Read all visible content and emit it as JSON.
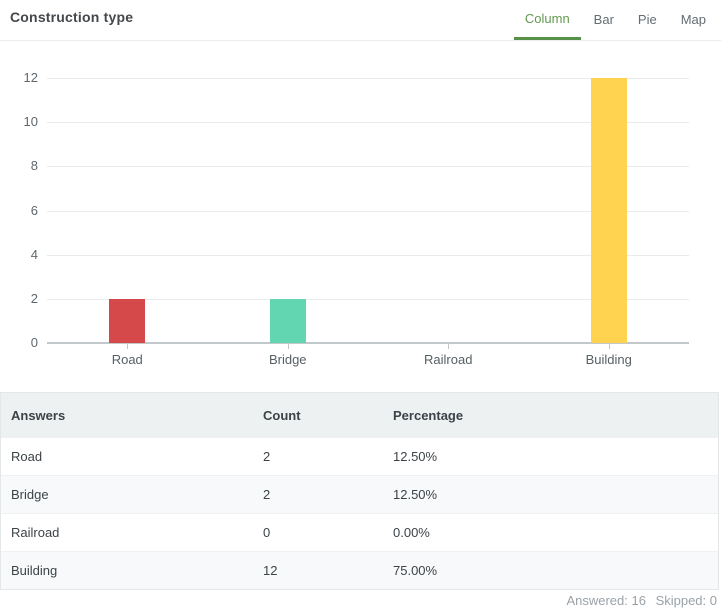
{
  "header": {
    "title": "Construction type",
    "tabs": [
      {
        "label": "Column",
        "active": true
      },
      {
        "label": "Bar",
        "active": false
      },
      {
        "label": "Pie",
        "active": false
      },
      {
        "label": "Map",
        "active": false
      }
    ]
  },
  "colors": {
    "active_tab_green": "#63994f",
    "tab_underline_green": "#579048",
    "grid": "#e9ebec",
    "axis": "#c3c8ca",
    "bar_road_red": "#d5494b",
    "bar_bridge_teal": "#62d5b1",
    "bar_building_yellow": "#ffd24f"
  },
  "chart_data": {
    "type": "bar",
    "title": "Construction type",
    "categories": [
      "Road",
      "Bridge",
      "Railroad",
      "Building"
    ],
    "values": [
      2,
      2,
      0,
      12
    ],
    "bar_colors": [
      "#d5494b",
      "#62d5b1",
      "#62d5b1",
      "#ffd24f"
    ],
    "ylim": [
      0,
      12
    ],
    "yticks": [
      0,
      2,
      4,
      6,
      8,
      10,
      12
    ],
    "grid": true,
    "legend": false,
    "xlabel": "",
    "ylabel": ""
  },
  "table": {
    "columns": [
      "Answers",
      "Count",
      "Percentage"
    ],
    "rows": [
      {
        "answer": "Road",
        "count": "2",
        "percentage": "12.50%"
      },
      {
        "answer": "Bridge",
        "count": "2",
        "percentage": "12.50%"
      },
      {
        "answer": "Railroad",
        "count": "0",
        "percentage": "0.00%"
      },
      {
        "answer": "Building",
        "count": "12",
        "percentage": "75.00%"
      }
    ]
  },
  "footer": {
    "answered": "Answered: 16",
    "skipped": "Skipped: 0"
  }
}
